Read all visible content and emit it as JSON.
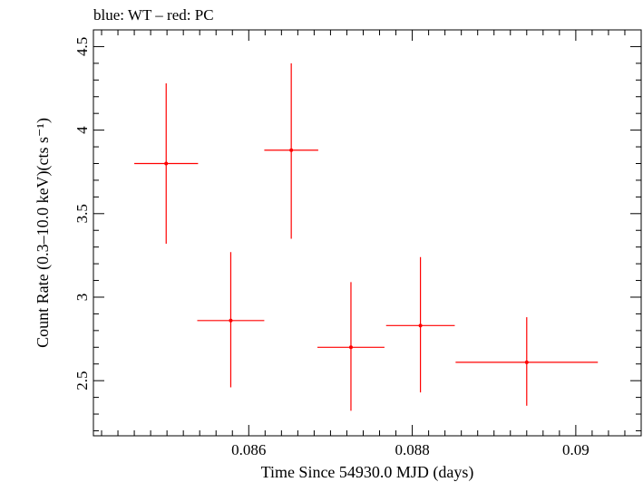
{
  "chart_data": {
    "type": "scatter",
    "title": "blue: WT – red: PC",
    "xlabel": "Time Since 54930.0 MJD (days)",
    "ylabel": "Count Rate (0.3–10.0 keV)(cts s⁻¹)",
    "xlim": [
      0.0841,
      0.0908
    ],
    "ylim": [
      2.17,
      4.6
    ],
    "x_major_ticks": [
      0.086,
      0.088,
      0.09
    ],
    "x_tick_labels": [
      "0.086",
      "0.088",
      "0.09"
    ],
    "x_minor_step": 0.0002,
    "y_major_ticks": [
      2.5,
      3,
      3.5,
      4,
      4.5
    ],
    "y_tick_labels": [
      "2.5",
      "3",
      "3.5",
      "4",
      "4.5"
    ],
    "y_minor_step": 0.1,
    "series": [
      {
        "name": "PC",
        "color": "#ff0000",
        "points": [
          {
            "x": 0.08499,
            "xerr": 0.00039,
            "y": 3.8,
            "yerr_low": 0.48,
            "yerr_high": 0.48
          },
          {
            "x": 0.08578,
            "xerr": 0.00041,
            "y": 2.86,
            "yerr_low": 0.4,
            "yerr_high": 0.41
          },
          {
            "x": 0.08652,
            "xerr": 0.00033,
            "y": 3.88,
            "yerr_low": 0.53,
            "yerr_high": 0.52
          },
          {
            "x": 0.08725,
            "xerr": 0.00041,
            "y": 2.7,
            "yerr_low": 0.38,
            "yerr_high": 0.39
          },
          {
            "x": 0.0881,
            "xerr": 0.00042,
            "y": 2.83,
            "yerr_low": 0.4,
            "yerr_high": 0.41
          },
          {
            "x": 0.0894,
            "xerr": 0.00087,
            "y": 2.61,
            "yerr_low": 0.26,
            "yerr_high": 0.27
          }
        ]
      }
    ]
  }
}
